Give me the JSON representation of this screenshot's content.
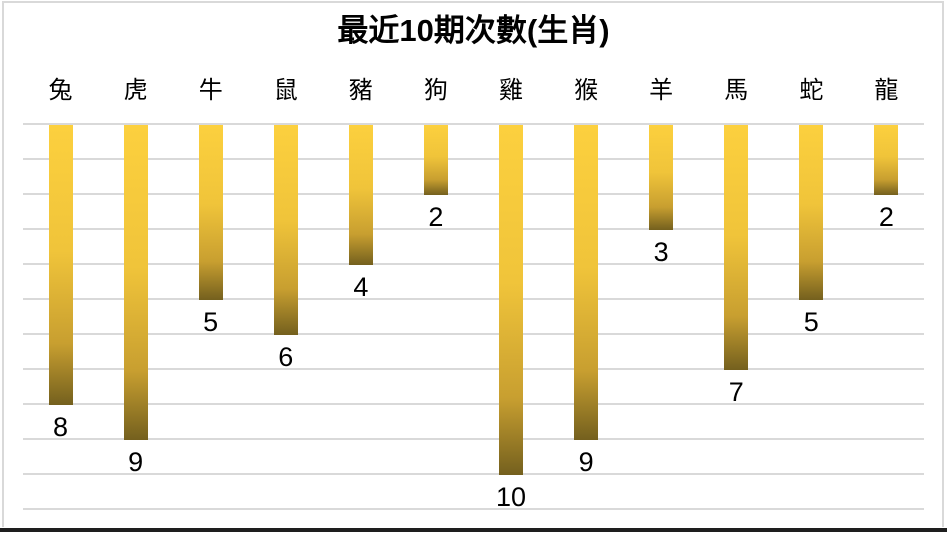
{
  "window": {
    "background": "#FFFFFF",
    "frame_color": "#D9D9D9",
    "bottom_edge_color": "#1E1E1E"
  },
  "chart_data": {
    "type": "bar",
    "title": "最近10期次數(生肖)",
    "categories": [
      "兔",
      "虎",
      "牛",
      "鼠",
      "豬",
      "狗",
      "雞",
      "猴",
      "羊",
      "馬",
      "蛇",
      "龍"
    ],
    "values": [
      8,
      9,
      5,
      6,
      4,
      2,
      10,
      9,
      3,
      7,
      5,
      2
    ],
    "orientation": "columns-hanging-from-top",
    "value_axis": {
      "min": 0,
      "max": 11,
      "reversed": true,
      "tick_labels_visible": false
    },
    "category_axis_position": "top",
    "gridlines": {
      "show": true,
      "interval": 1,
      "color": "#D9D9D9"
    },
    "data_labels": {
      "show": true,
      "position": "below-bar-end"
    },
    "legend": "none",
    "bar_gradient": {
      "top": "#FCD03E",
      "upper_mid": "#F0C43A",
      "lower_mid": "#C89F30",
      "bottom": "#74601E"
    }
  }
}
